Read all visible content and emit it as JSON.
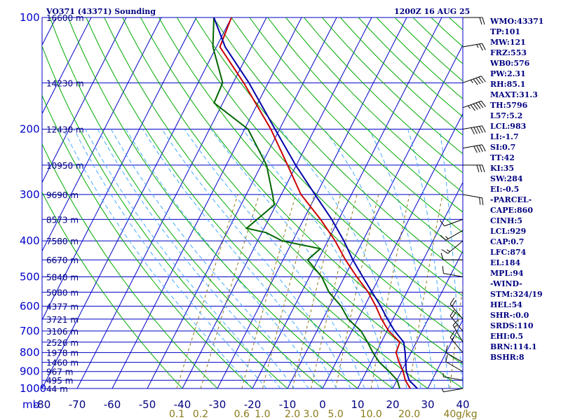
{
  "header": {
    "station": "VO371 (43371) Sounding",
    "time": "1200Z 16 AUG 25"
  },
  "colors": {
    "isobar": "#0000c8",
    "isotherm": "#0000c8",
    "dry_adiabat": "#00aa00",
    "moist_adiabat": "#44aaff",
    "mixing_ratio": "#8b7b1a",
    "temperature": "#cc0000",
    "dewpoint": "#006600",
    "parcel": "#0000aa",
    "wind_barb": "#000000"
  },
  "axes": {
    "pressure_labels": [
      "100",
      "200",
      "300",
      "400",
      "500",
      "600",
      "700",
      "800",
      "900",
      "1000"
    ],
    "pressure_unit": "mb",
    "temp_labels": [
      "-80",
      "-70",
      "-60",
      "-50",
      "-40",
      "-30",
      "-20",
      "-10",
      "0",
      "10",
      "20",
      "30",
      "40"
    ],
    "mixing_ratio_labels": [
      "0.1",
      "0.2",
      "0.6",
      "1.0",
      "2.0",
      "3.0",
      "5.0",
      "10.0",
      "20.0",
      "40"
    ],
    "mixing_ratio_unit": "g/kg",
    "heights": [
      {
        "p": 100,
        "label": "16600 m"
      },
      {
        "p": 150,
        "label": "14230 m"
      },
      {
        "p": 200,
        "label": "12430 m"
      },
      {
        "p": 250,
        "label": "10950 m"
      },
      {
        "p": 300,
        "label": "9690 m"
      },
      {
        "p": 350,
        "label": "8573 m"
      },
      {
        "p": 400,
        "label": "7580 m"
      },
      {
        "p": 450,
        "label": "6670 m"
      },
      {
        "p": 500,
        "label": "5840 m"
      },
      {
        "p": 550,
        "label": "5080 m"
      },
      {
        "p": 600,
        "label": "4377 m"
      },
      {
        "p": 650,
        "label": "3721 m"
      },
      {
        "p": 700,
        "label": "3106 m"
      },
      {
        "p": 750,
        "label": "2526 m"
      },
      {
        "p": 800,
        "label": "1978 m"
      },
      {
        "p": 850,
        "label": "1460 m"
      },
      {
        "p": 900,
        "label": "967 m"
      },
      {
        "p": 950,
        "label": "495 m"
      },
      {
        "p": 1000,
        "label": "44 m"
      }
    ]
  },
  "indices": [
    "WMO:43371",
    "TP:101",
    "MW:121",
    "FRZ:553",
    "WB0:576",
    "PW:2.31",
    "RH:85.1",
    "MAXT:31.3",
    "TH:5796",
    "L57:5.2",
    "LCL:983",
    "LI:-1.7",
    "SI:0.7",
    "TT:42",
    "KI:35",
    "SW:284",
    "EI:-0.5",
    "-PARCEL-",
    "CAPE:860",
    "CINH:5",
    "LCL:929",
    "CAP:0.7",
    "LFC:874",
    "EL:184",
    "MPL:94",
    "-WIND-",
    "STM:324/19",
    "HEL:54",
    "SHR-:0.0",
    "SRDS:110",
    "EHI:0.5",
    "BRN:114.1",
    "BSHR:8"
  ],
  "chart_data": {
    "type": "line",
    "diagram": "skew-t log-p",
    "xlabel": "",
    "ylabel": "mb",
    "ylim": [
      1000,
      100
    ],
    "xlim": [
      -80,
      40
    ],
    "series": [
      {
        "variable": "temperature",
        "p": [
          1000,
          950,
          900,
          850,
          800,
          750,
          700,
          650,
          600,
          550,
          500,
          450,
          400,
          350,
          300,
          250,
          200,
          150,
          120,
          100
        ],
        "t": [
          25.0,
          22.4,
          20.5,
          18.0,
          15.7,
          15.3,
          10.5,
          6.7,
          3.2,
          -1.0,
          -6.5,
          -12.2,
          -17.9,
          -25.2,
          -34.4,
          -42.5,
          -52.5,
          -67.0,
          -79.0,
          -80.0
        ]
      },
      {
        "variable": "dewpoint",
        "p": [
          1000,
          950,
          900,
          850,
          800,
          750,
          700,
          650,
          600,
          550,
          500,
          450,
          420,
          400,
          380,
          370,
          320,
          300,
          250,
          200,
          170,
          150,
          120,
          100
        ],
        "t": [
          22.0,
          20.1,
          16.5,
          12.4,
          9.1,
          6.1,
          2.6,
          -2.8,
          -6.7,
          -12.2,
          -16.5,
          -23.0,
          -21.0,
          -33.0,
          -38.8,
          -45.0,
          -40.5,
          -42.5,
          -48.5,
          -59.0,
          -72.5,
          -73.0,
          -81.0,
          -85.0
        ]
      },
      {
        "variable": "parcel",
        "p": [
          1000,
          950,
          900,
          850,
          800,
          750,
          700,
          650,
          600,
          550,
          500,
          450,
          400,
          350,
          300,
          250,
          200,
          150,
          120,
          100
        ],
        "t": [
          27.0,
          23.5,
          21.4,
          19.9,
          18.3,
          16.4,
          12.2,
          8.4,
          4.6,
          0.1,
          -4.8,
          -10.1,
          -15.4,
          -22.0,
          -30.4,
          -40.2,
          -51.3,
          -65.5,
          -77.5,
          -85.0
        ]
      }
    ],
    "wind_barbs": [
      {
        "p": 100,
        "dir": 90,
        "spd": 20
      },
      {
        "p": 120,
        "dir": 80,
        "spd": 25
      },
      {
        "p": 150,
        "dir": 70,
        "spd": 45
      },
      {
        "p": 175,
        "dir": 70,
        "spd": 55
      },
      {
        "p": 200,
        "dir": 80,
        "spd": 50
      },
      {
        "p": 225,
        "dir": 80,
        "spd": 40
      },
      {
        "p": 250,
        "dir": 90,
        "spd": 30
      },
      {
        "p": 300,
        "dir": 100,
        "spd": 20
      },
      {
        "p": 350,
        "dir": 250,
        "spd": 10
      },
      {
        "p": 375,
        "dir": 240,
        "spd": 15
      },
      {
        "p": 400,
        "dir": 230,
        "spd": 15
      },
      {
        "p": 450,
        "dir": 270,
        "spd": 10
      },
      {
        "p": 500,
        "dir": 280,
        "spd": 10
      },
      {
        "p": 650,
        "dir": 320,
        "spd": 20
      },
      {
        "p": 700,
        "dir": 320,
        "spd": 20
      },
      {
        "p": 750,
        "dir": 330,
        "spd": 15
      },
      {
        "p": 800,
        "dir": 320,
        "spd": 15
      },
      {
        "p": 850,
        "dir": 300,
        "spd": 10
      },
      {
        "p": 900,
        "dir": 300,
        "spd": 10
      },
      {
        "p": 950,
        "dir": 280,
        "spd": 5
      },
      {
        "p": 1000,
        "dir": 260,
        "spd": 5
      }
    ]
  }
}
